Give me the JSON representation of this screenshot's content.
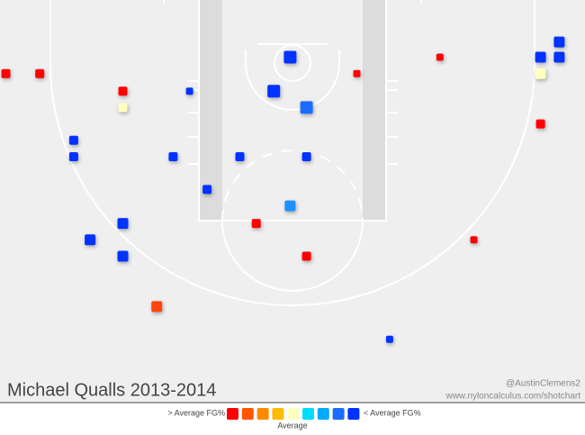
{
  "chart_data": {
    "type": "shotchart",
    "title": "Michael Qualls 2013-2014",
    "credit": "@AustinClemens2",
    "source": "www.nyloncalculus.com/shotchart",
    "x": [
      -24.5,
      -21.6,
      -14.5,
      -14.5,
      -8.8,
      -0.2,
      -1.6,
      1.2,
      5.5,
      12.6,
      22.8,
      21.2,
      22.8,
      21.2,
      21.2,
      -18.7,
      -18.7,
      -10.2,
      -4.5,
      1.2,
      -7.3,
      -0.2,
      -3.1,
      -14.5,
      -17.3,
      -14.5,
      1.2,
      15.5,
      -11.6,
      8.3
    ],
    "y": [
      0.9,
      0.9,
      2.4,
      3.8,
      2.4,
      -0.5,
      2.4,
      3.8,
      0.9,
      -0.5,
      -1.8,
      -0.5,
      -0.5,
      0.9,
      5.2,
      6.6,
      8.0,
      8.0,
      8.0,
      8.0,
      10.8,
      12.2,
      13.7,
      13.7,
      15.1,
      16.5,
      16.5,
      15.1,
      20.8,
      23.6
    ],
    "sizes": [
      2,
      2,
      2,
      2,
      1,
      4,
      4,
      4,
      1,
      1,
      3,
      3,
      3,
      3,
      2,
      2,
      2,
      2,
      2,
      2,
      2,
      3,
      2,
      3,
      3,
      3,
      2,
      1,
      3,
      1
    ],
    "colors": [
      "#ff0000",
      "#ff0000",
      "#ff0000",
      "#ffffc0",
      "#0033ff",
      "#0033ff",
      "#0033ff",
      "#1a6cff",
      "#ff0000",
      "#ff0000",
      "#0033ff",
      "#0033ff",
      "#0033ff",
      "#ffffc0",
      "#ff0000",
      "#0033ff",
      "#0033ff",
      "#0033ff",
      "#0033ff",
      "#0033ff",
      "#0033ff",
      "#2090ff",
      "#ff0000",
      "#0033ff",
      "#0033ff",
      "#0033ff",
      "#ff0000",
      "#ff0000",
      "#ff4411",
      "#0033ff"
    ],
    "legend": {
      "high": "> Average FG%",
      "low": "< Average FG%",
      "mid": "Average",
      "colors": [
        "#ff0000",
        "#ff5500",
        "#ff8800",
        "#ffbb00",
        "#ffffc0",
        "#00ddff",
        "#00aaff",
        "#1a6cff",
        "#0033ff"
      ]
    }
  }
}
